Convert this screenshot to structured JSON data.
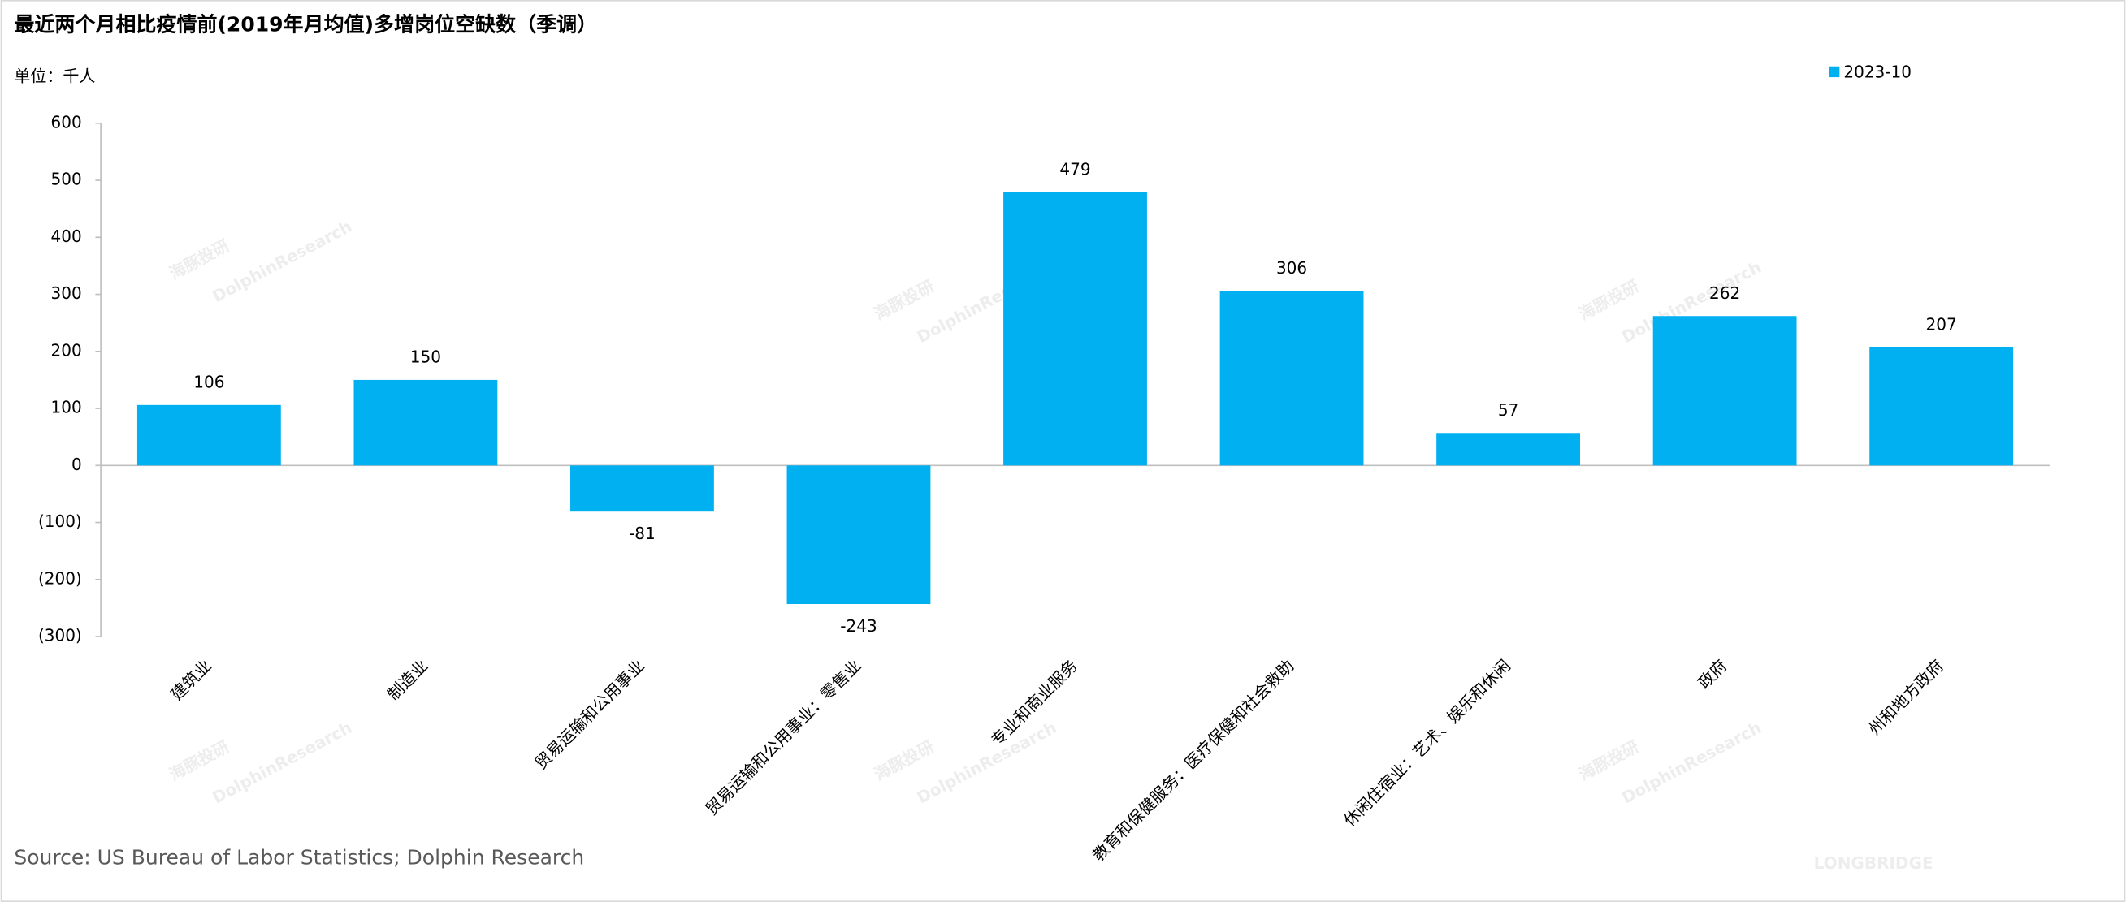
{
  "chart_data": {
    "type": "bar",
    "title": "最近两个月相比疫情前(2019年月均值)多增岗位空缺数（季调）",
    "y_label": "单位：千人",
    "source": "Source: US Bureau of Labor Statistics; Dolphin Research",
    "watermarks": [
      "海豚投研",
      "DolphinResearch",
      "LONGBRIDGE"
    ],
    "categories": [
      "建筑业",
      "制造业",
      "贸易运输和公用事业",
      "贸易运输和公用事业：零售业",
      "专业和商业服务",
      "教育和保健服务：医疗保健和社会救助",
      "休闲住宿业：艺术、娱乐和休闲",
      "政府",
      "州和地方政府"
    ],
    "series": [
      {
        "name": "2023-10",
        "color": "#00b0f0",
        "values": [
          106,
          150,
          -81,
          -243,
          479,
          306,
          57,
          262,
          207
        ]
      }
    ],
    "ylim": [
      -300,
      600
    ],
    "yticks": [
      {
        "value": -300,
        "label": "(300)"
      },
      {
        "value": -200,
        "label": "(200)"
      },
      {
        "value": -100,
        "label": "(100)"
      },
      0,
      100,
      200,
      300,
      400,
      500,
      600
    ],
    "negative_tick_color": "#c00000",
    "legend": "top-right"
  }
}
